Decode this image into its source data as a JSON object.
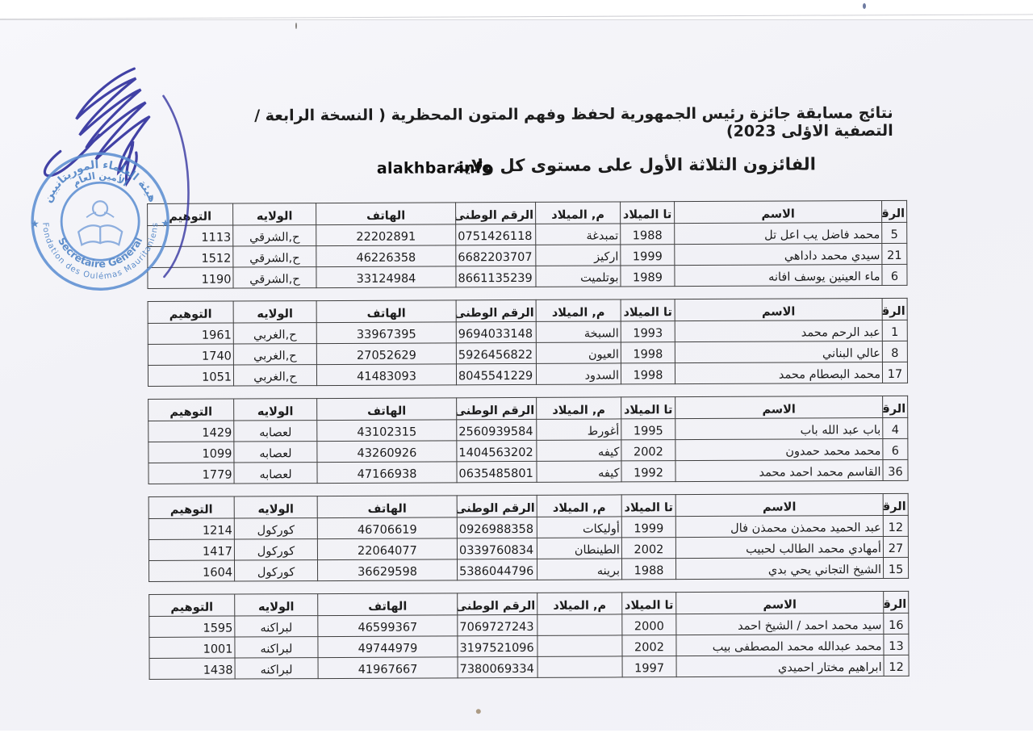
{
  "page": {
    "title": "نتائج مسابقة جائزة رئيس الجمهورية لحفظ وفهم المتون المحظرية ( النسخة الرابعة / التصفية الاؤلى 2023)",
    "subtitle": "الفائزون الثلاثة الأول على مستوى كل ولاية",
    "watermark": "alakhbar.info"
  },
  "stamp": {
    "outer_arabic": "هيئة العلماء الموريتانيين",
    "inner_arabic": "الأمين العام",
    "inner_french": "Secrétaire Général",
    "outer_french": "Fondation des Oulémas Mauritaniens",
    "star": "★",
    "ink_color": "#2e2e9c",
    "stamp_color": "#5d8fd2"
  },
  "table_headers": [
    "الرقم",
    "الاسم",
    "تا الميلاد",
    "م, الميلاد",
    "الرقم الوطنى",
    "الهاتف",
    "الولايه",
    "التوهيم"
  ],
  "tables": [
    {
      "rows": [
        {
          "num": "5",
          "name": "محمد فاضل يب اعل تل",
          "birth_year": "1988",
          "birth_place": "تمبدغة",
          "national_id": "0751426118",
          "phone": "22202891",
          "wilaya": "ح,الشرقي",
          "score": "1113"
        },
        {
          "num": "21",
          "name": "سيدي محمد داداهي",
          "birth_year": "1999",
          "birth_place": "اركيز",
          "national_id": "6682203707",
          "phone": "46226358",
          "wilaya": "ح,الشرقي",
          "score": "1512"
        },
        {
          "num": "6",
          "name": "ماء العينين يوسف افانه",
          "birth_year": "1989",
          "birth_place": "بوتلميت",
          "national_id": "8661135239",
          "phone": "33124984",
          "wilaya": "ح,الشرقي",
          "score": "1190"
        }
      ]
    },
    {
      "rows": [
        {
          "num": "1",
          "name": "عبد الرحم محمد",
          "birth_year": "1993",
          "birth_place": "السبخة",
          "national_id": "9694033148",
          "phone": "33967395",
          "wilaya": "ح,الغربي",
          "score": "1961"
        },
        {
          "num": "8",
          "name": "عالي البناني",
          "birth_year": "1998",
          "birth_place": "العيون",
          "national_id": "5926456822",
          "phone": "27052629",
          "wilaya": "ح,الغربي",
          "score": "1740"
        },
        {
          "num": "17",
          "name": "محمد البصطام محمد",
          "birth_year": "1998",
          "birth_place": "السدود",
          "national_id": "8045541229",
          "phone": "41483093",
          "wilaya": "ح,الغربي",
          "score": "1051"
        }
      ]
    },
    {
      "rows": [
        {
          "num": "4",
          "name": "باب عبد الله باب",
          "birth_year": "1995",
          "birth_place": "أغورط",
          "national_id": "2560939584",
          "phone": "43102315",
          "wilaya": "لعصابه",
          "score": "1429"
        },
        {
          "num": "6",
          "name": "محمد محمد حمدون",
          "birth_year": "2002",
          "birth_place": "كيفه",
          "national_id": "1404563202",
          "phone": "43260926",
          "wilaya": "لعصابه",
          "score": "1099"
        },
        {
          "num": "36",
          "name": "القاسم محمد احمد محمد",
          "birth_year": "1992",
          "birth_place": "كيفه",
          "national_id": "0635485801",
          "phone": "47166938",
          "wilaya": "لعصابه",
          "score": "1779"
        }
      ]
    },
    {
      "rows": [
        {
          "num": "12",
          "name": "عبد الحميد محمذن محمذن فال",
          "birth_year": "1999",
          "birth_place": "أوليكات",
          "national_id": "0926988358",
          "phone": "46706619",
          "wilaya": "كوركول",
          "score": "1214"
        },
        {
          "num": "27",
          "name": "أمهادي محمد الطالب لحبيب",
          "birth_year": "2002",
          "birth_place": "الطينطان",
          "national_id": "0339760834",
          "phone": "22064077",
          "wilaya": "كوركول",
          "score": "1417"
        },
        {
          "num": "15",
          "name": "الشيخ التجاني يحي بدي",
          "birth_year": "1988",
          "birth_place": "برينه",
          "national_id": "5386044796",
          "phone": "36629598",
          "wilaya": "كوركول",
          "score": "1604"
        }
      ]
    },
    {
      "rows": [
        {
          "num": "16",
          "name": "سيد محمد احمد / الشيخ احمد",
          "birth_year": "2000",
          "birth_place": "",
          "national_id": "7069727243",
          "phone": "46599367",
          "wilaya": "لبراكنه",
          "score": "1595"
        },
        {
          "num": "13",
          "name": "محمد عبدالله محمد المصطفى بيب",
          "birth_year": "2002",
          "birth_place": "",
          "national_id": "3197521096",
          "phone": "49744979",
          "wilaya": "لبراكنه",
          "score": "1001"
        },
        {
          "num": "12",
          "name": "ابراهيم مختار احميدي",
          "birth_year": "1997",
          "birth_place": "",
          "national_id": "7380069334",
          "phone": "41967667",
          "wilaya": "لبراكنه",
          "score": "1438"
        }
      ]
    }
  ]
}
